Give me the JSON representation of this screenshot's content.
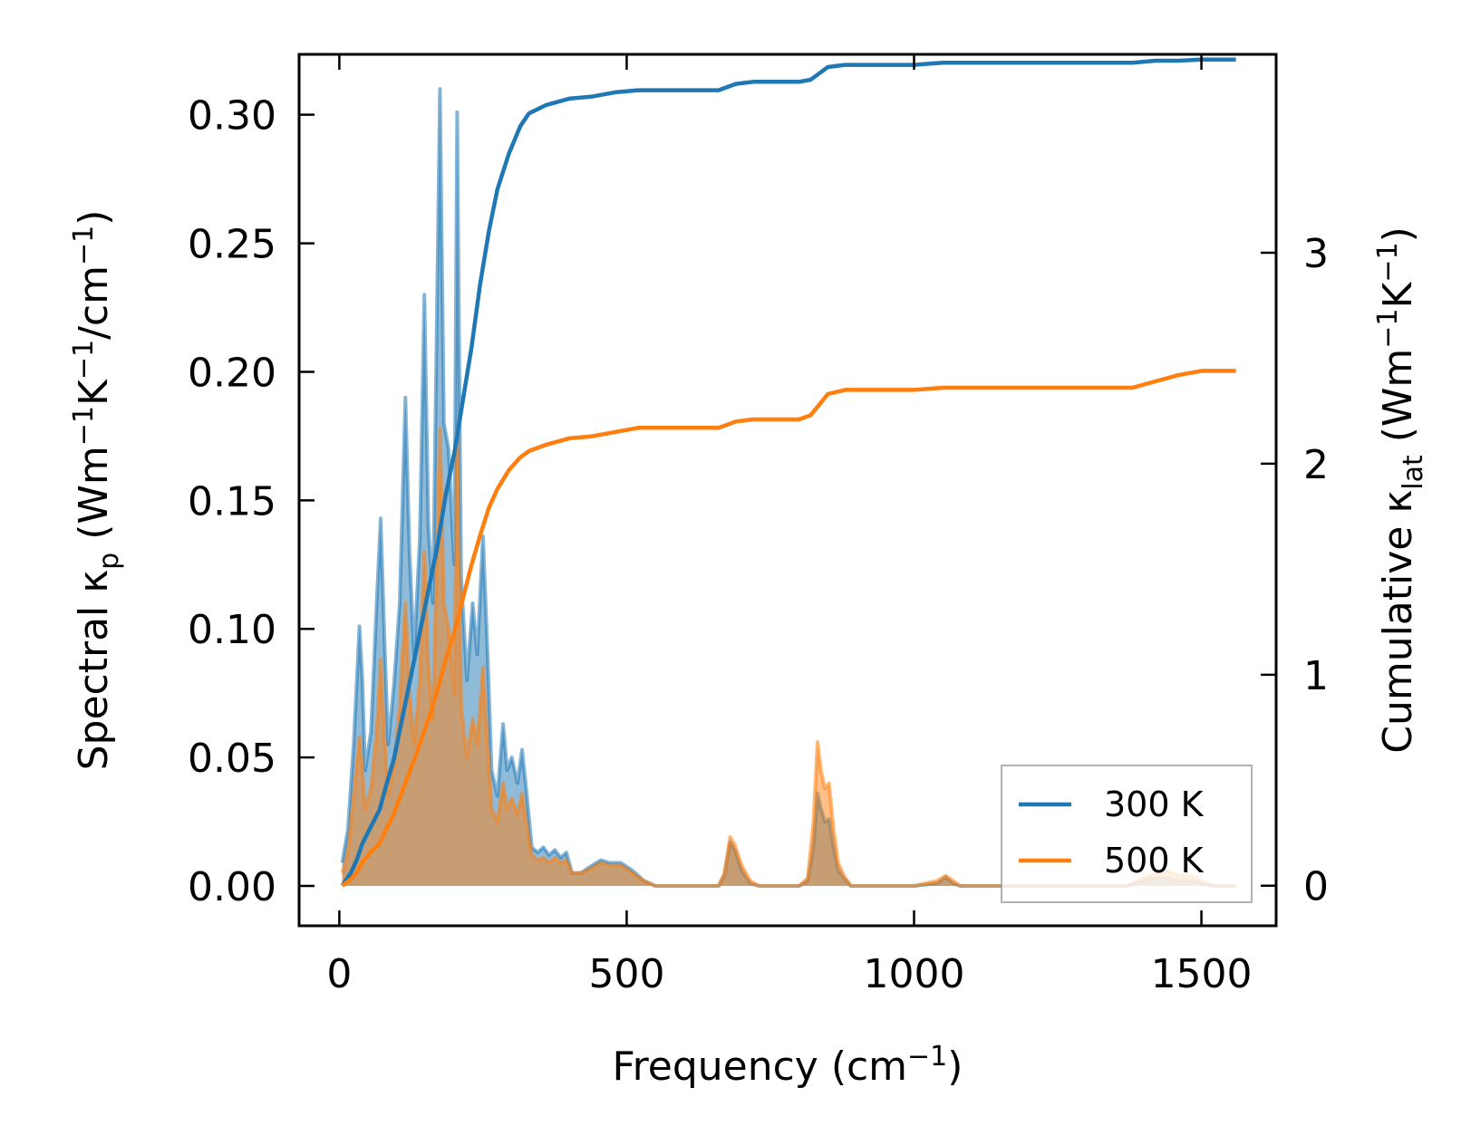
{
  "chart_data": {
    "type": "area+line (dual axis)",
    "xlabel": {
      "base": "Frequency (cm",
      "sup": "−1",
      "tail": ")"
    },
    "ylabel_left": {
      "a": "Spectral κ",
      "sub": "p",
      "b": " (Wm",
      "sup1": "−1",
      "c": "K",
      "sup2": "−1",
      "d": "/cm",
      "sup3": "−1",
      "e": ")"
    },
    "ylabel_right": {
      "a": "Cumulative κ",
      "sub": "lat",
      "b": " (Wm",
      "sup1": "−1",
      "c": "K",
      "sup2": "−1",
      "e": ")"
    },
    "xlim": [
      -70,
      1630
    ],
    "ylim_left": [
      -0.0155,
      0.3235
    ],
    "ylim_right": [
      -0.19,
      3.94
    ],
    "x_ticks": [
      0,
      500,
      1000,
      1500
    ],
    "x_tick_labels": [
      "0",
      "500",
      "1000",
      "1500"
    ],
    "y_left_ticks": [
      0.0,
      0.05,
      0.1,
      0.15,
      0.2,
      0.25,
      0.3
    ],
    "y_left_tick_labels": [
      "0.00",
      "0.05",
      "0.10",
      "0.15",
      "0.20",
      "0.25",
      "0.30"
    ],
    "y_right_ticks": [
      0,
      1,
      2,
      3
    ],
    "y_right_tick_labels": [
      "0",
      "1",
      "2",
      "3"
    ],
    "legend": {
      "position": "lower-right",
      "entries": [
        {
          "label": "300 K",
          "color": "#1f77b4"
        },
        {
          "label": "500 K",
          "color": "#ff7f0e"
        }
      ]
    },
    "series": [
      {
        "name": "300 K",
        "color": "#1f77b4",
        "spectral": [
          [
            5,
            0.009
          ],
          [
            15,
            0.022
          ],
          [
            25,
            0.055
          ],
          [
            35,
            0.101
          ],
          [
            40,
            0.08
          ],
          [
            45,
            0.045
          ],
          [
            55,
            0.06
          ],
          [
            65,
            0.11
          ],
          [
            72,
            0.143
          ],
          [
            78,
            0.1
          ],
          [
            85,
            0.055
          ],
          [
            95,
            0.078
          ],
          [
            105,
            0.11
          ],
          [
            115,
            0.19
          ],
          [
            122,
            0.13
          ],
          [
            130,
            0.09
          ],
          [
            140,
            0.135
          ],
          [
            148,
            0.23
          ],
          [
            155,
            0.14
          ],
          [
            163,
            0.11
          ],
          [
            175,
            0.31
          ],
          [
            182,
            0.18
          ],
          [
            190,
            0.17
          ],
          [
            200,
            0.125
          ],
          [
            205,
            0.301
          ],
          [
            212,
            0.12
          ],
          [
            222,
            0.08
          ],
          [
            232,
            0.11
          ],
          [
            240,
            0.09
          ],
          [
            250,
            0.136
          ],
          [
            258,
            0.09
          ],
          [
            265,
            0.045
          ],
          [
            275,
            0.035
          ],
          [
            285,
            0.063
          ],
          [
            292,
            0.045
          ],
          [
            300,
            0.05
          ],
          [
            310,
            0.04
          ],
          [
            318,
            0.053
          ],
          [
            325,
            0.038
          ],
          [
            335,
            0.015
          ],
          [
            345,
            0.013
          ],
          [
            355,
            0.015
          ],
          [
            365,
            0.012
          ],
          [
            375,
            0.014
          ],
          [
            385,
            0.011
          ],
          [
            395,
            0.013
          ],
          [
            405,
            0.005
          ],
          [
            420,
            0.005
          ],
          [
            440,
            0.008
          ],
          [
            455,
            0.01
          ],
          [
            470,
            0.009
          ],
          [
            490,
            0.009
          ],
          [
            510,
            0.006
          ],
          [
            530,
            0.002
          ],
          [
            550,
            0.0
          ],
          [
            600,
            0.0
          ],
          [
            660,
            0.0
          ],
          [
            670,
            0.004
          ],
          [
            680,
            0.017
          ],
          [
            688,
            0.014
          ],
          [
            700,
            0.006
          ],
          [
            715,
            0.001
          ],
          [
            730,
            0.0
          ],
          [
            800,
            0.0
          ],
          [
            815,
            0.002
          ],
          [
            825,
            0.015
          ],
          [
            832,
            0.036
          ],
          [
            838,
            0.03
          ],
          [
            845,
            0.025
          ],
          [
            852,
            0.026
          ],
          [
            860,
            0.015
          ],
          [
            868,
            0.006
          ],
          [
            878,
            0.003
          ],
          [
            890,
            0.0
          ],
          [
            1000,
            0.0
          ],
          [
            1040,
            0.001
          ],
          [
            1055,
            0.0035
          ],
          [
            1068,
            0.001
          ],
          [
            1080,
            0.0
          ],
          [
            1370,
            0.0
          ],
          [
            1400,
            0.002
          ],
          [
            1420,
            0.003
          ],
          [
            1440,
            0.003
          ],
          [
            1460,
            0.002
          ],
          [
            1480,
            0.002
          ],
          [
            1500,
            0.001
          ],
          [
            1520,
            0.0
          ],
          [
            1560,
            0.0
          ]
        ],
        "cumulative": [
          [
            5,
            0.0
          ],
          [
            20,
            0.06
          ],
          [
            30,
            0.12
          ],
          [
            40,
            0.2
          ],
          [
            55,
            0.28
          ],
          [
            70,
            0.36
          ],
          [
            80,
            0.46
          ],
          [
            95,
            0.6
          ],
          [
            110,
            0.8
          ],
          [
            125,
            1.0
          ],
          [
            140,
            1.2
          ],
          [
            155,
            1.4
          ],
          [
            170,
            1.6
          ],
          [
            185,
            1.85
          ],
          [
            200,
            2.05
          ],
          [
            215,
            2.3
          ],
          [
            230,
            2.55
          ],
          [
            245,
            2.85
          ],
          [
            260,
            3.1
          ],
          [
            275,
            3.3
          ],
          [
            295,
            3.47
          ],
          [
            315,
            3.6
          ],
          [
            330,
            3.66
          ],
          [
            360,
            3.7
          ],
          [
            400,
            3.73
          ],
          [
            440,
            3.74
          ],
          [
            480,
            3.76
          ],
          [
            520,
            3.77
          ],
          [
            600,
            3.77
          ],
          [
            660,
            3.77
          ],
          [
            670,
            3.78
          ],
          [
            690,
            3.8
          ],
          [
            720,
            3.81
          ],
          [
            800,
            3.81
          ],
          [
            820,
            3.82
          ],
          [
            835,
            3.85
          ],
          [
            850,
            3.88
          ],
          [
            880,
            3.89
          ],
          [
            1000,
            3.89
          ],
          [
            1050,
            3.9
          ],
          [
            1100,
            3.9
          ],
          [
            1380,
            3.9
          ],
          [
            1420,
            3.91
          ],
          [
            1460,
            3.91
          ],
          [
            1500,
            3.915
          ],
          [
            1560,
            3.915
          ]
        ]
      },
      {
        "name": "500 K",
        "color": "#ff7f0e",
        "spectral": [
          [
            5,
            0.005
          ],
          [
            15,
            0.013
          ],
          [
            25,
            0.035
          ],
          [
            35,
            0.058
          ],
          [
            40,
            0.045
          ],
          [
            45,
            0.03
          ],
          [
            55,
            0.038
          ],
          [
            65,
            0.06
          ],
          [
            72,
            0.088
          ],
          [
            78,
            0.06
          ],
          [
            85,
            0.035
          ],
          [
            95,
            0.047
          ],
          [
            105,
            0.07
          ],
          [
            115,
            0.11
          ],
          [
            122,
            0.075
          ],
          [
            130,
            0.055
          ],
          [
            140,
            0.08
          ],
          [
            148,
            0.13
          ],
          [
            155,
            0.085
          ],
          [
            163,
            0.065
          ],
          [
            175,
            0.178
          ],
          [
            182,
            0.11
          ],
          [
            190,
            0.1
          ],
          [
            200,
            0.075
          ],
          [
            205,
            0.177
          ],
          [
            212,
            0.07
          ],
          [
            222,
            0.05
          ],
          [
            232,
            0.065
          ],
          [
            240,
            0.055
          ],
          [
            250,
            0.085
          ],
          [
            258,
            0.055
          ],
          [
            265,
            0.03
          ],
          [
            275,
            0.025
          ],
          [
            285,
            0.04
          ],
          [
            292,
            0.03
          ],
          [
            300,
            0.034
          ],
          [
            310,
            0.028
          ],
          [
            318,
            0.036
          ],
          [
            325,
            0.025
          ],
          [
            335,
            0.012
          ],
          [
            345,
            0.01
          ],
          [
            355,
            0.011
          ],
          [
            365,
            0.009
          ],
          [
            375,
            0.011
          ],
          [
            385,
            0.009
          ],
          [
            395,
            0.01
          ],
          [
            405,
            0.005
          ],
          [
            420,
            0.005
          ],
          [
            440,
            0.007
          ],
          [
            455,
            0.009
          ],
          [
            470,
            0.008
          ],
          [
            490,
            0.008
          ],
          [
            510,
            0.005
          ],
          [
            530,
            0.002
          ],
          [
            550,
            0.0
          ],
          [
            600,
            0.0
          ],
          [
            660,
            0.0
          ],
          [
            670,
            0.005
          ],
          [
            680,
            0.019
          ],
          [
            688,
            0.016
          ],
          [
            700,
            0.008
          ],
          [
            715,
            0.002
          ],
          [
            730,
            0.0
          ],
          [
            800,
            0.0
          ],
          [
            815,
            0.003
          ],
          [
            825,
            0.025
          ],
          [
            832,
            0.056
          ],
          [
            838,
            0.045
          ],
          [
            845,
            0.038
          ],
          [
            852,
            0.04
          ],
          [
            860,
            0.022
          ],
          [
            868,
            0.009
          ],
          [
            878,
            0.004
          ],
          [
            890,
            0.0
          ],
          [
            1000,
            0.0
          ],
          [
            1040,
            0.002
          ],
          [
            1055,
            0.004
          ],
          [
            1068,
            0.002
          ],
          [
            1080,
            0.0
          ],
          [
            1370,
            0.0
          ],
          [
            1400,
            0.003
          ],
          [
            1420,
            0.005
          ],
          [
            1440,
            0.006
          ],
          [
            1460,
            0.004
          ],
          [
            1480,
            0.004
          ],
          [
            1500,
            0.002
          ],
          [
            1520,
            0.0
          ],
          [
            1560,
            0.0
          ]
        ],
        "cumulative": [
          [
            5,
            0.0
          ],
          [
            20,
            0.03
          ],
          [
            30,
            0.06
          ],
          [
            40,
            0.11
          ],
          [
            55,
            0.16
          ],
          [
            70,
            0.2
          ],
          [
            80,
            0.26
          ],
          [
            95,
            0.34
          ],
          [
            110,
            0.45
          ],
          [
            125,
            0.56
          ],
          [
            140,
            0.67
          ],
          [
            155,
            0.79
          ],
          [
            170,
            0.92
          ],
          [
            185,
            1.07
          ],
          [
            200,
            1.2
          ],
          [
            215,
            1.36
          ],
          [
            230,
            1.52
          ],
          [
            245,
            1.66
          ],
          [
            260,
            1.79
          ],
          [
            275,
            1.88
          ],
          [
            295,
            1.97
          ],
          [
            315,
            2.03
          ],
          [
            330,
            2.06
          ],
          [
            360,
            2.09
          ],
          [
            400,
            2.12
          ],
          [
            440,
            2.13
          ],
          [
            480,
            2.15
          ],
          [
            520,
            2.17
          ],
          [
            600,
            2.17
          ],
          [
            660,
            2.17
          ],
          [
            670,
            2.18
          ],
          [
            690,
            2.2
          ],
          [
            720,
            2.21
          ],
          [
            800,
            2.21
          ],
          [
            820,
            2.23
          ],
          [
            835,
            2.28
          ],
          [
            850,
            2.33
          ],
          [
            880,
            2.35
          ],
          [
            1000,
            2.35
          ],
          [
            1050,
            2.36
          ],
          [
            1100,
            2.36
          ],
          [
            1380,
            2.36
          ],
          [
            1420,
            2.39
          ],
          [
            1460,
            2.42
          ],
          [
            1500,
            2.44
          ],
          [
            1560,
            2.44
          ]
        ]
      }
    ]
  }
}
